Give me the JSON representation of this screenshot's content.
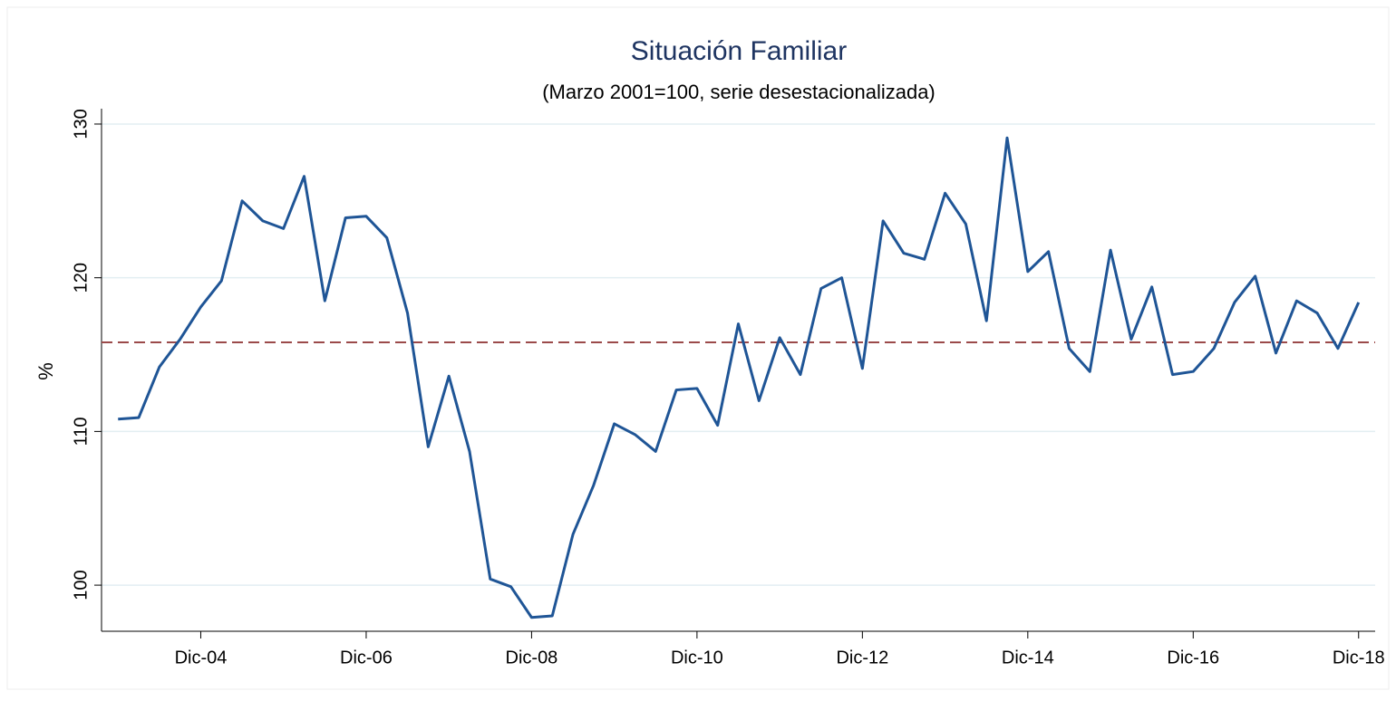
{
  "chart_data": {
    "type": "line",
    "title": "Situación Familiar",
    "subtitle": "(Marzo 2001=100, serie desestacionalizada)",
    "y_label": "%",
    "categories": [
      null,
      null,
      null,
      null,
      "Dic-04",
      null,
      null,
      null,
      null,
      null,
      null,
      null,
      "Dic-06",
      null,
      null,
      null,
      null,
      null,
      null,
      null,
      "Dic-08",
      null,
      null,
      null,
      null,
      null,
      null,
      null,
      "Dic-10",
      null,
      null,
      null,
      null,
      null,
      null,
      null,
      "Dic-12",
      null,
      null,
      null,
      null,
      null,
      null,
      null,
      "Dic-14",
      null,
      null,
      null,
      null,
      null,
      null,
      null,
      "Dic-16",
      null,
      null,
      null,
      null,
      null,
      null,
      null,
      "Dic-18"
    ],
    "series": [
      {
        "color": "#1f5596",
        "values": [
          110.8,
          110.9,
          114.2,
          116,
          118.1,
          119.8,
          125,
          123.7,
          123.2,
          126.6,
          118.5,
          123.9,
          124,
          122.6,
          117.7,
          109,
          113.6,
          108.7,
          100.4,
          99.9,
          97.9,
          98,
          103.3,
          106.5,
          110.5,
          109.8,
          108.7,
          112.7,
          112.8,
          110.4,
          117,
          112,
          116.1,
          113.7,
          119.3,
          120,
          114.1,
          123.7,
          121.6,
          121.2,
          125.5,
          123.5,
          117.2,
          129.1,
          120.4,
          121.7,
          115.4,
          113.9,
          121.8,
          116,
          119.4,
          113.7,
          113.9,
          115.4,
          118.4,
          120.1,
          115.1,
          118.5,
          117.7,
          115.4,
          118.4
        ]
      }
    ],
    "reference_line": {
      "value": 115.8,
      "color": "#9b4a4a"
    },
    "ylim": [
      97,
      131
    ],
    "yticks": [
      100,
      110,
      120,
      130
    ],
    "grid": true
  }
}
